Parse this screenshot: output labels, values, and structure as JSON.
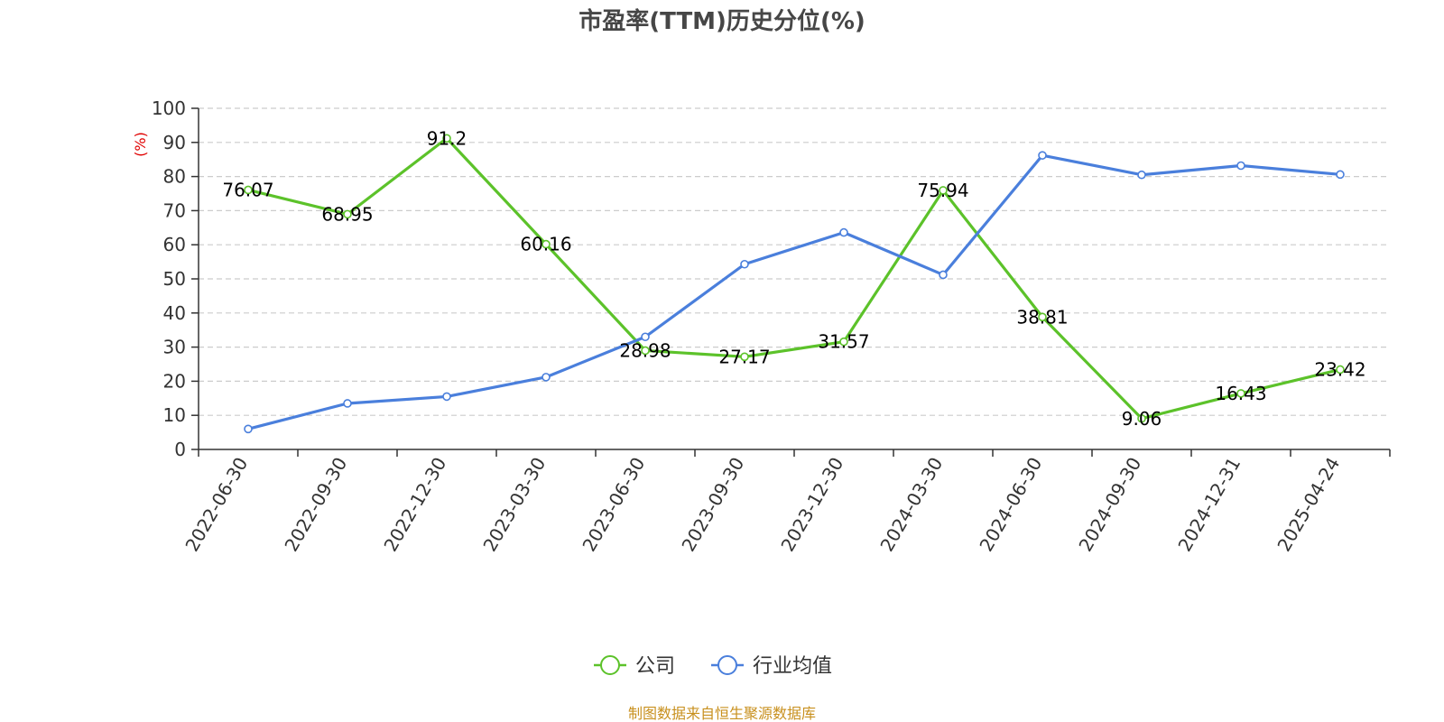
{
  "chart_data": {
    "type": "line",
    "title": "市盈率(TTM)历史分位(%)",
    "ylabel": "(%)",
    "ylim": [
      0,
      100
    ],
    "yticks": [
      0,
      10,
      20,
      30,
      40,
      50,
      60,
      70,
      80,
      90,
      100
    ],
    "categories": [
      "2022-06-30",
      "2022-09-30",
      "2022-12-30",
      "2023-03-30",
      "2023-06-30",
      "2023-09-30",
      "2023-12-30",
      "2024-03-30",
      "2024-06-30",
      "2024-09-30",
      "2024-12-31",
      "2025-04-24"
    ],
    "grid": true,
    "legend_position": "bottom",
    "series": [
      {
        "name": "公司",
        "color": "#5cc22a",
        "values": [
          76.07,
          68.95,
          91.2,
          60.16,
          28.98,
          27.17,
          31.57,
          75.94,
          38.81,
          9.06,
          16.43,
          23.42
        ],
        "labels": [
          "76.07",
          "68.95",
          "91.2",
          "60.16",
          "28.98",
          "27.17",
          "31.57",
          "75.94",
          "38.81",
          "9.06",
          "16.43",
          "23.42"
        ]
      },
      {
        "name": "行业均值",
        "color": "#4a7fdc",
        "values": [
          6.0,
          13.5,
          15.5,
          21.2,
          33.0,
          54.3,
          63.6,
          51.2,
          86.2,
          80.5,
          83.2,
          80.6
        ]
      }
    ],
    "source": "制图数据来自恒生聚源数据库"
  }
}
